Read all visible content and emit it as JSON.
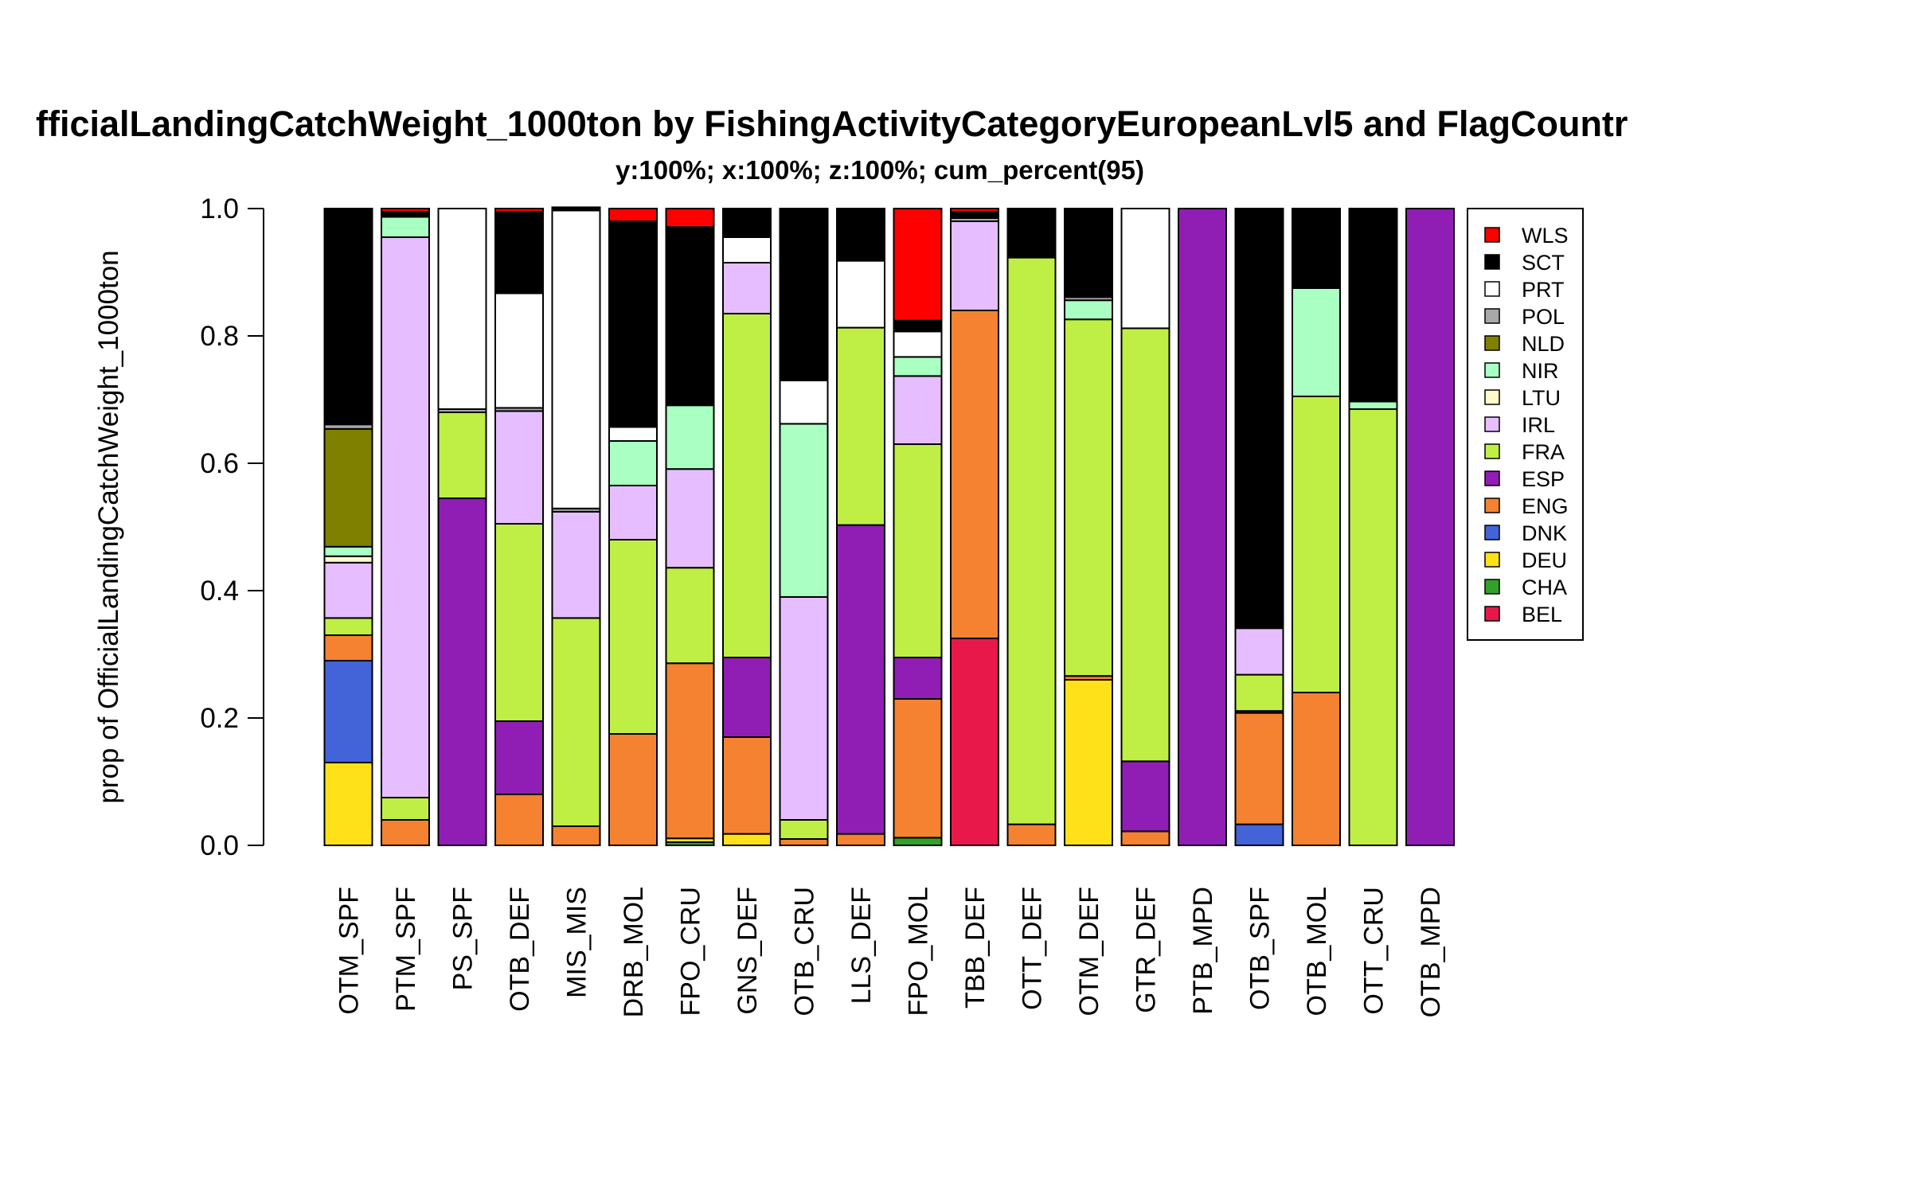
{
  "chart_data": {
    "type": "bar",
    "stacked": true,
    "title": "fficialLandingCatchWeight_1000ton by FishingActivityCategoryEuropeanLvl5 and FlagCountr",
    "subtitle": "y:100%; x:100%; z:100%; cum_percent(95)",
    "ylabel": "prop of OfficialLandingCatchWeight_1000ton",
    "xlabel": "",
    "ylim": [
      0,
      1
    ],
    "yticks": [
      "0.0",
      "0.2",
      "0.4",
      "0.6",
      "0.8",
      "1.0"
    ],
    "grid": false,
    "legend_position": "right",
    "categories": [
      "OTM_SPF",
      "PTM_SPF",
      "PS_SPF",
      "OTB_DEF",
      "MIS_MIS",
      "DRB_MOL",
      "FPO_CRU",
      "GNS_DEF",
      "OTB_CRU",
      "LLS_DEF",
      "FPO_MOL",
      "TBB_DEF",
      "OTT_DEF",
      "OTM_DEF",
      "GTR_DEF",
      "PTB_MPD",
      "OTB_SPF",
      "OTB_MOL",
      "OTT_CRU",
      "OTB_MPD"
    ],
    "series": [
      {
        "name": "BEL",
        "color": "#E8194A",
        "values": [
          0,
          0,
          0,
          0,
          0,
          0,
          0,
          0,
          0,
          0,
          0,
          0.325,
          0,
          0,
          0,
          0,
          0,
          0,
          0,
          0
        ]
      },
      {
        "name": "CHA",
        "color": "#33A02C",
        "values": [
          0,
          0,
          0,
          0,
          0,
          0,
          0.005,
          0,
          0,
          0,
          0.012,
          0,
          0,
          0,
          0,
          0,
          0,
          0,
          0,
          0
        ]
      },
      {
        "name": "DEU",
        "color": "#FFE119",
        "values": [
          0.13,
          0,
          0,
          0,
          0,
          0,
          0.006,
          0.018,
          0,
          0,
          0,
          0,
          0,
          0.26,
          0,
          0,
          0,
          0,
          0,
          0
        ]
      },
      {
        "name": "DNK",
        "color": "#4363D8",
        "values": [
          0.16,
          0,
          0,
          0,
          0,
          0,
          0,
          0,
          0,
          0,
          0,
          0,
          0,
          0,
          0,
          0,
          0.033,
          0,
          0,
          0
        ]
      },
      {
        "name": "ENG",
        "color": "#F58231",
        "values": [
          0.04,
          0.04,
          0,
          0.08,
          0.03,
          0.175,
          0.275,
          0.152,
          0.01,
          0.018,
          0.218,
          0.515,
          0.033,
          0.006,
          0.022,
          0,
          0.175,
          0.24,
          0,
          0
        ]
      },
      {
        "name": "ESP",
        "color": "#911EB4",
        "values": [
          0,
          0,
          0.545,
          0.115,
          0,
          0,
          0,
          0.125,
          0,
          0.485,
          0.065,
          0,
          0,
          0,
          0.11,
          1.0,
          0.003,
          0,
          0,
          1.0
        ]
      },
      {
        "name": "FRA",
        "color": "#BFEF45",
        "values": [
          0.027,
          0.035,
          0.135,
          0.31,
          0.327,
          0.305,
          0.15,
          0.54,
          0.03,
          0.31,
          0.335,
          0,
          0.89,
          0.56,
          0.68,
          0,
          0.057,
          0.465,
          0.685,
          0
        ]
      },
      {
        "name": "IRL",
        "color": "#E6BEFF",
        "values": [
          0.087,
          0.88,
          0,
          0.177,
          0.167,
          0.085,
          0.155,
          0.08,
          0.35,
          0,
          0.107,
          0.14,
          0,
          0,
          0,
          0,
          0.073,
          0,
          0,
          0
        ]
      },
      {
        "name": "LTU",
        "color": "#FFFAC8",
        "values": [
          0.01,
          0,
          0,
          0,
          0,
          0,
          0,
          0,
          0,
          0,
          0,
          0,
          0,
          0,
          0,
          0,
          0,
          0,
          0,
          0
        ]
      },
      {
        "name": "NIR",
        "color": "#AAFFC3",
        "values": [
          0.015,
          0.032,
          0,
          0,
          0,
          0.07,
          0.1,
          0,
          0.272,
          0,
          0.03,
          0,
          0,
          0.03,
          0,
          0,
          0,
          0.17,
          0.012,
          0
        ]
      },
      {
        "name": "NLD",
        "color": "#808000",
        "values": [
          0.185,
          0,
          0,
          0,
          0,
          0,
          0,
          0,
          0,
          0,
          0,
          0,
          0,
          0,
          0,
          0,
          0,
          0,
          0,
          0
        ]
      },
      {
        "name": "POL",
        "color": "#A9A9A9",
        "values": [
          0.007,
          0,
          0.005,
          0.005,
          0.005,
          0,
          0,
          0,
          0,
          0,
          0,
          0.005,
          0,
          0.005,
          0,
          0,
          0,
          0,
          0,
          0
        ]
      },
      {
        "name": "PRT",
        "color": "#FFFFFF",
        "values": [
          0,
          0,
          0.315,
          0.18,
          0.468,
          0.022,
          0,
          0.04,
          0.068,
          0.105,
          0.04,
          0,
          0,
          0,
          0.188,
          0,
          0,
          0,
          0,
          0
        ]
      },
      {
        "name": "SCT",
        "color": "#000000",
        "values": [
          0.339,
          0.008,
          0,
          0.128,
          0.005,
          0.323,
          0.28,
          0.045,
          0.27,
          0.082,
          0.017,
          0.01,
          0.077,
          0.139,
          0,
          0,
          0.659,
          0.125,
          0.303,
          0
        ]
      },
      {
        "name": "WLS",
        "color": "#FF0000",
        "values": [
          0,
          0.005,
          0,
          0.005,
          0,
          0.02,
          0.029,
          0,
          0,
          0,
          0.176,
          0.005,
          0,
          0,
          0,
          0,
          0,
          0,
          0,
          0
        ]
      }
    ],
    "legend_order": [
      "WLS",
      "SCT",
      "PRT",
      "POL",
      "NLD",
      "NIR",
      "LTU",
      "IRL",
      "FRA",
      "ESP",
      "ENG",
      "DNK",
      "DEU",
      "CHA",
      "BEL"
    ]
  }
}
